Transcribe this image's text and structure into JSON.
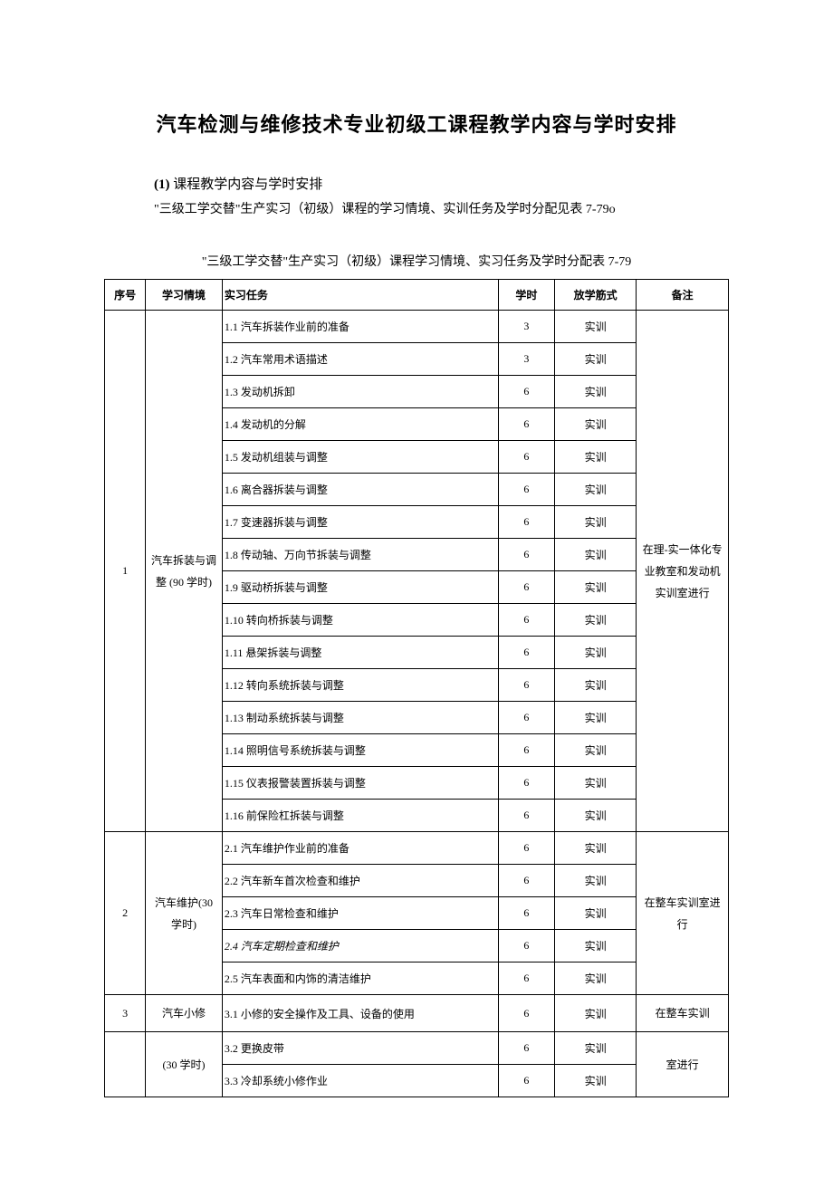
{
  "title": "汽车检测与维修技术专业初级工课程教学内容与学时安排",
  "section": {
    "number": "(1)",
    "label": "课程教学内容与学时安排"
  },
  "description": "\"三级工学交替\"生产实习（初级）课程的学习情境、实训任务及学时分配见表 7-79o",
  "tableCaption": "\"三级工学交替\"生产实习（初级）课程学习情境、实习任务及学时分配表 7-79",
  "headers": {
    "seq": "序号",
    "context": "学习情境",
    "task": "实习任务",
    "hours": "学时",
    "mode": "放学筋式",
    "remark": "备注"
  },
  "groups": [
    {
      "seq": "1",
      "context": "汽车拆装与调整 (90 学时)",
      "remark": "在理-实一体化专业教室和发动机实训室进行",
      "rows": [
        {
          "task": "1.1 汽车拆装作业前的准备",
          "hours": "3",
          "mode": "实训"
        },
        {
          "task": "1.2 汽车常用术语描述",
          "hours": "3",
          "mode": "实训"
        },
        {
          "task": "1.3 发动机拆卸",
          "hours": "6",
          "mode": "实训"
        },
        {
          "task": "1.4 发动机的分解",
          "hours": "6",
          "mode": "实训"
        },
        {
          "task": "1.5 发动机组装与调整",
          "hours": "6",
          "mode": "实训"
        },
        {
          "task": "1.6 离合器拆装与调整",
          "hours": "6",
          "mode": "实训"
        },
        {
          "task": "1.7 变速器拆装与调整",
          "hours": "6",
          "mode": "实训"
        },
        {
          "task": "1.8 传动轴、万向节拆装与调整",
          "hours": "6",
          "mode": "实训"
        },
        {
          "task": "1.9 驱动桥拆装与调整",
          "hours": "6",
          "mode": "实训"
        },
        {
          "task": "1.10 转向桥拆装与调整",
          "hours": "6",
          "mode": "实训"
        },
        {
          "task": "1.11 悬架拆装与调整",
          "hours": "6",
          "mode": "实训"
        },
        {
          "task": "1.12 转向系统拆装与调整",
          "hours": "6",
          "mode": "实训"
        },
        {
          "task": "1.13 制动系统拆装与调整",
          "hours": "6",
          "mode": "实训"
        },
        {
          "task": "1.14 照明信号系统拆装与调整",
          "hours": "6",
          "mode": "实训"
        },
        {
          "task": "1.15 仪表报警装置拆装与调整",
          "hours": "6",
          "mode": "实训"
        },
        {
          "task": "1.16 前保险杠拆装与调整",
          "hours": "6",
          "mode": "实训"
        }
      ]
    },
    {
      "seq": "2",
      "context": "汽车维护(30 学时)",
      "remark": "在整车实训室进行",
      "rows": [
        {
          "task": "2.1 汽车维护作业前的准备",
          "hours": "6",
          "mode": "实训"
        },
        {
          "task": "2.2 汽车新车首次检查和维护",
          "hours": "6",
          "mode": "实训"
        },
        {
          "task": "2.3 汽车日常检查和维护",
          "hours": "6",
          "mode": "实训"
        },
        {
          "task": "2.4 汽车定期检查和维护",
          "hours": "6",
          "mode": "实训",
          "italic": true
        },
        {
          "task": "2.5 汽车表面和内饰的清洁维护",
          "hours": "6",
          "mode": "实训"
        }
      ]
    }
  ],
  "group3": {
    "seqRow": {
      "seq": "3",
      "context": "汽车小修",
      "task": "3.1 小修的安全操作及工具、设备的使用",
      "hours": "6",
      "mode": "实训",
      "remark": "在整车实训"
    },
    "followRows": [
      {
        "context": "(30 学时)",
        "task": "3.2 更换皮带",
        "hours": "6",
        "mode": "实训",
        "remark": "室进行"
      },
      {
        "context": "",
        "task": "3.3 冷却系统小修作业",
        "hours": "6",
        "mode": "实训",
        "remark": ""
      }
    ]
  },
  "colors": {
    "text": "#000000",
    "background": "#ffffff",
    "border": "#000000"
  }
}
